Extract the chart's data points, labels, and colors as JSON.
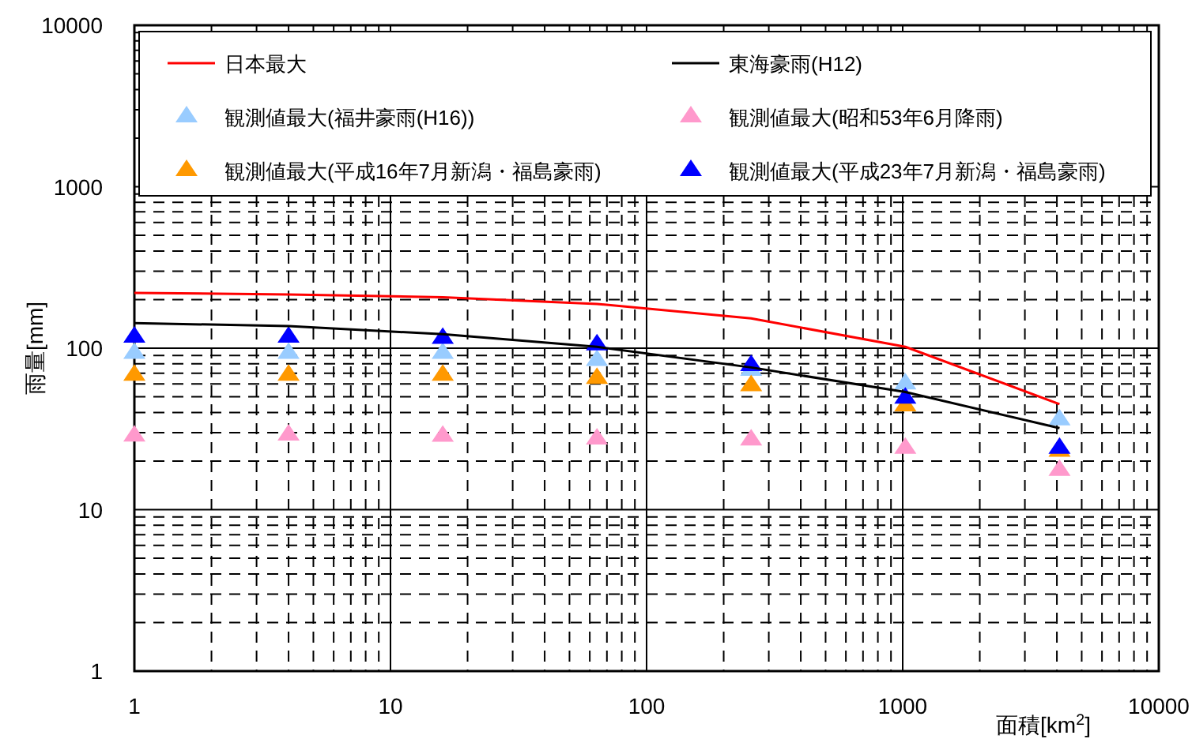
{
  "chart_data": {
    "type": "scatter",
    "xlabel": "面積[km$^{2}$]",
    "ylabel": "雨量[mm]",
    "log": "xy",
    "grid": true,
    "legend": "top",
    "marker": "triangle",
    "x": [
      1,
      4,
      16,
      64,
      256,
      1024,
      4096
    ],
    "xlim": [
      1,
      10000
    ],
    "xticks": [
      1,
      10,
      100,
      1000,
      10000
    ],
    "ylim": [
      1,
      10000
    ],
    "yticks": [
      1,
      10,
      100,
      1000,
      10000
    ],
    "series": [
      {
        "name": "日本最大",
        "type": "line",
        "color": "#ff0000",
        "marker": "none",
        "values": [
          220,
          215,
          207,
          188,
          153,
          102,
          45
        ]
      },
      {
        "name": "東海豪雨(H12)",
        "type": "line",
        "color": "#000000",
        "marker": "none",
        "values": [
          143,
          137,
          122,
          102,
          76,
          53.5,
          32
        ]
      },
      {
        "name": "観測値最大(福井豪雨(H16))",
        "color": "#99ccff",
        "values": [
          93,
          93,
          93,
          84,
          73,
          60,
          36
        ]
      },
      {
        "name": "観測値最大(昭和53年6月降雨)",
        "color": "#ff99cc",
        "values": [
          28.6,
          29,
          28.5,
          27.4,
          27,
          24,
          17.5
        ]
      },
      {
        "name": "観測値最大(平成16年7月新潟・福島豪雨)",
        "color": "#ff9900",
        "values": [
          68,
          68,
          68,
          65,
          58.5,
          44,
          23
        ]
      },
      {
        "name": "観測値最大(平成23年7月新潟・福島豪雨)",
        "color": "#0000ff",
        "values": [
          117,
          117,
          115,
          105,
          78,
          49,
          24
        ]
      }
    ]
  }
}
